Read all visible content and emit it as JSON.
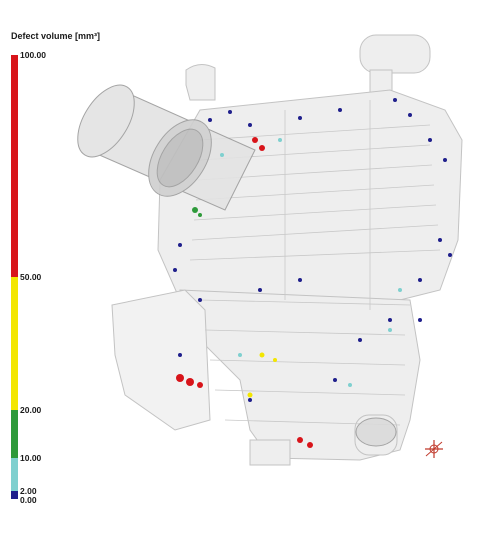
{
  "legend": {
    "title": "Defect volume [mm³]",
    "ticks": [
      "100.00",
      "50.00",
      "20.00",
      "10.00",
      "2.00",
      "0.00"
    ],
    "colors": {
      "red": "#d8141a",
      "yellow": "#f3e600",
      "green": "#2e9a3a",
      "cyan": "#7fd0cf",
      "blue": "#1f1f8c"
    }
  },
  "viewport": {
    "content": "ct-scan-defect-volume-rendering",
    "icon": "axis-triad-icon"
  }
}
